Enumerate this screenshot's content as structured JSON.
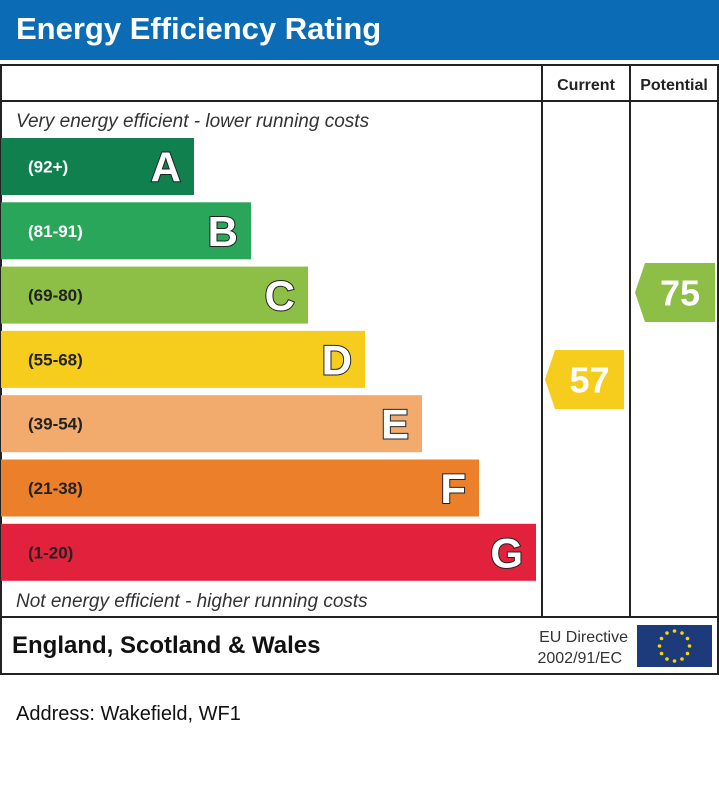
{
  "chart_data": {
    "type": "bar",
    "title": "Energy Efficiency Rating",
    "columns": [
      "Current",
      "Potential"
    ],
    "top_note": "Very energy efficient - lower running costs",
    "bottom_note": "Not energy efficient - higher running costs",
    "bands": [
      {
        "letter": "A",
        "range": "(92+)",
        "color": "#10804f"
      },
      {
        "letter": "B",
        "range": "(81-91)",
        "color": "#2aa65b"
      },
      {
        "letter": "C",
        "range": "(69-80)",
        "color": "#8dbe45"
      },
      {
        "letter": "D",
        "range": "(55-68)",
        "color": "#f6cd1c"
      },
      {
        "letter": "E",
        "range": "(39-54)",
        "color": "#f2aa6d"
      },
      {
        "letter": "F",
        "range": "(21-38)",
        "color": "#ec7f2a"
      },
      {
        "letter": "G",
        "range": "(1-20)",
        "color": "#e2213d"
      }
    ],
    "current": {
      "value": 57,
      "band": "D",
      "color": "#f6cd1c"
    },
    "potential": {
      "value": 75,
      "band": "C",
      "color": "#8dbe45"
    }
  },
  "footer": {
    "region": "England, Scotland & Wales",
    "directive_line1": "EU Directive",
    "directive_line2": "2002/91/EC"
  },
  "address": "Address: Wakefield, WF1"
}
